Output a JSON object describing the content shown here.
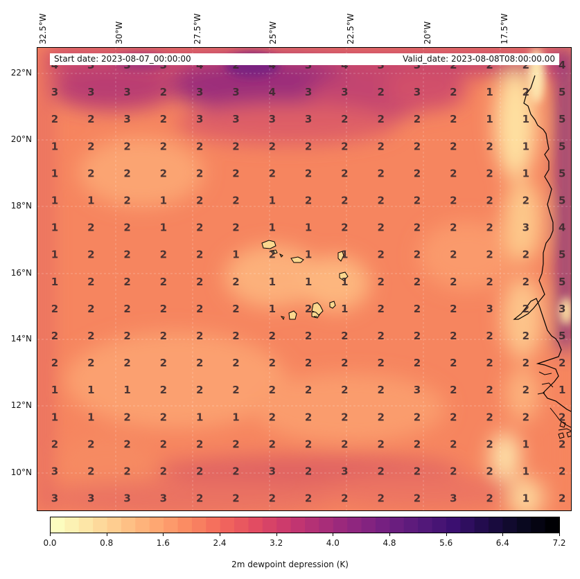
{
  "map": {
    "start_date": "Start date: 2023-08-07_00:00:00",
    "valid_date": "Valid_date: 2023-08-08T08:00:00.00",
    "lon_labels": [
      "32.5°W",
      "30°W",
      "27.5°W",
      "25°W",
      "22.5°W",
      "20°W",
      "17.5°W"
    ],
    "lat_labels": [
      "22°N",
      "20°N",
      "18°N",
      "16°N",
      "14°N",
      "12°N",
      "10°N"
    ],
    "colorbar": {
      "title": "2m dewpoint depression (K)",
      "ticks": [
        "0.0",
        "0.8",
        "1.6",
        "2.4",
        "3.2",
        "4.0",
        "4.8",
        "5.6",
        "6.4",
        "7.2"
      ],
      "min": 0.0,
      "max": 7.2,
      "colormap": "magma_r"
    },
    "grid_values": [
      [
        "4",
        "3",
        "3",
        "3",
        "4",
        "2",
        "4",
        "3",
        "4",
        "3",
        "3",
        "2",
        "2",
        "2",
        "4"
      ],
      [
        "3",
        "3",
        "3",
        "2",
        "3",
        "3",
        "4",
        "3",
        "3",
        "2",
        "3",
        "2",
        "1",
        "2",
        "5"
      ],
      [
        "2",
        "2",
        "3",
        "2",
        "3",
        "3",
        "3",
        "3",
        "2",
        "2",
        "2",
        "2",
        "1",
        "1",
        "5"
      ],
      [
        "1",
        "2",
        "2",
        "2",
        "2",
        "2",
        "2",
        "2",
        "2",
        "2",
        "2",
        "2",
        "2",
        "1",
        "5"
      ],
      [
        "1",
        "2",
        "2",
        "2",
        "2",
        "2",
        "2",
        "2",
        "2",
        "2",
        "2",
        "2",
        "2",
        "1",
        "5"
      ],
      [
        "1",
        "1",
        "2",
        "1",
        "2",
        "2",
        "1",
        "2",
        "2",
        "2",
        "2",
        "2",
        "2",
        "2",
        "5"
      ],
      [
        "1",
        "2",
        "2",
        "1",
        "2",
        "2",
        "1",
        "1",
        "2",
        "2",
        "2",
        "2",
        "2",
        "3",
        "4"
      ],
      [
        "1",
        "2",
        "2",
        "2",
        "2",
        "1",
        "2",
        "1",
        "1",
        "2",
        "2",
        "2",
        "2",
        "2",
        "5"
      ],
      [
        "1",
        "2",
        "2",
        "2",
        "2",
        "2",
        "1",
        "1",
        "1",
        "2",
        "2",
        "2",
        "2",
        "2",
        "5"
      ],
      [
        "2",
        "2",
        "2",
        "2",
        "2",
        "2",
        "1",
        "2",
        "1",
        "2",
        "2",
        "2",
        "3",
        "2",
        "3"
      ],
      [
        "2",
        "2",
        "2",
        "2",
        "2",
        "2",
        "2",
        "2",
        "2",
        "2",
        "2",
        "2",
        "2",
        "2",
        "5"
      ],
      [
        "2",
        "2",
        "2",
        "2",
        "2",
        "2",
        "2",
        "2",
        "2",
        "2",
        "2",
        "2",
        "2",
        "2",
        "2"
      ],
      [
        "1",
        "1",
        "1",
        "2",
        "2",
        "2",
        "2",
        "2",
        "2",
        "2",
        "3",
        "2",
        "2",
        "2",
        "1"
      ],
      [
        "1",
        "1",
        "2",
        "2",
        "1",
        "1",
        "2",
        "2",
        "2",
        "2",
        "2",
        "2",
        "2",
        "2",
        "2"
      ],
      [
        "2",
        "2",
        "2",
        "2",
        "2",
        "2",
        "2",
        "2",
        "2",
        "2",
        "2",
        "2",
        "2",
        "1",
        "2"
      ],
      [
        "3",
        "2",
        "2",
        "2",
        "2",
        "2",
        "3",
        "2",
        "3",
        "2",
        "2",
        "2",
        "2",
        "1",
        "2"
      ],
      [
        "3",
        "3",
        "3",
        "3",
        "2",
        "2",
        "2",
        "2",
        "2",
        "2",
        "2",
        "3",
        "2",
        "1",
        "2"
      ]
    ]
  }
}
